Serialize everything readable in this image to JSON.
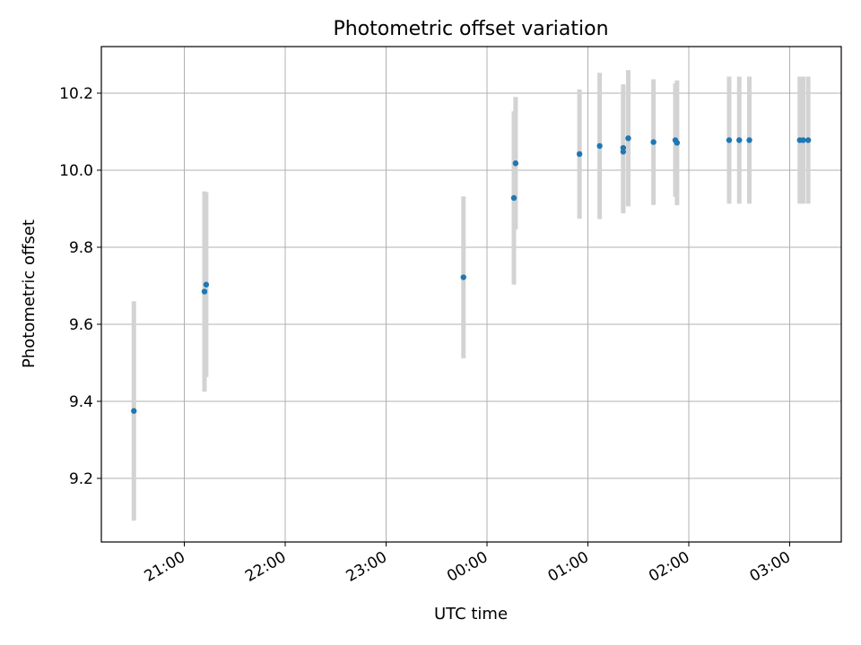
{
  "chart_data": {
    "type": "scatter",
    "title": "Photometric offset variation",
    "xlabel": "UTC time",
    "ylabel": "Photometric offset",
    "x_tick_labels": [
      "21:00",
      "22:00",
      "23:00",
      "00:00",
      "01:00",
      "02:00",
      "03:00"
    ],
    "y_tick_labels": [
      "9.2",
      "9.4",
      "9.6",
      "9.8",
      "10.0",
      "10.2"
    ],
    "ylim": [
      9.03,
      10.32
    ],
    "grid": true,
    "point_color": "#1f77b4",
    "errorbar_color": "#d3d3d3",
    "points": [
      {
        "time": "20:30",
        "y": 9.375,
        "err": 0.285
      },
      {
        "time": "21:12",
        "y": 9.685,
        "err": 0.26
      },
      {
        "time": "21:13",
        "y": 9.703,
        "err": 0.24
      },
      {
        "time": "23:46",
        "y": 9.722,
        "err": 0.21
      },
      {
        "time": "00:16",
        "y": 9.928,
        "err": 0.225
      },
      {
        "time": "00:17",
        "y": 10.018,
        "err": 0.172
      },
      {
        "time": "00:55",
        "y": 10.042,
        "err": 0.168
      },
      {
        "time": "01:07",
        "y": 10.063,
        "err": 0.19
      },
      {
        "time": "01:21",
        "y": 10.048,
        "err": 0.16
      },
      {
        "time": "01:21",
        "y": 10.058,
        "err": 0.165
      },
      {
        "time": "01:24",
        "y": 10.083,
        "err": 0.177
      },
      {
        "time": "01:39",
        "y": 10.073,
        "err": 0.163
      },
      {
        "time": "01:52",
        "y": 10.078,
        "err": 0.147
      },
      {
        "time": "01:53",
        "y": 10.071,
        "err": 0.162
      },
      {
        "time": "02:24",
        "y": 10.078,
        "err": 0.165
      },
      {
        "time": "02:30",
        "y": 10.078,
        "err": 0.165
      },
      {
        "time": "02:36",
        "y": 10.078,
        "err": 0.165
      },
      {
        "time": "03:06",
        "y": 10.078,
        "err": 0.165
      },
      {
        "time": "03:08",
        "y": 10.078,
        "err": 0.165
      },
      {
        "time": "03:11",
        "y": 10.078,
        "err": 0.165
      }
    ]
  }
}
